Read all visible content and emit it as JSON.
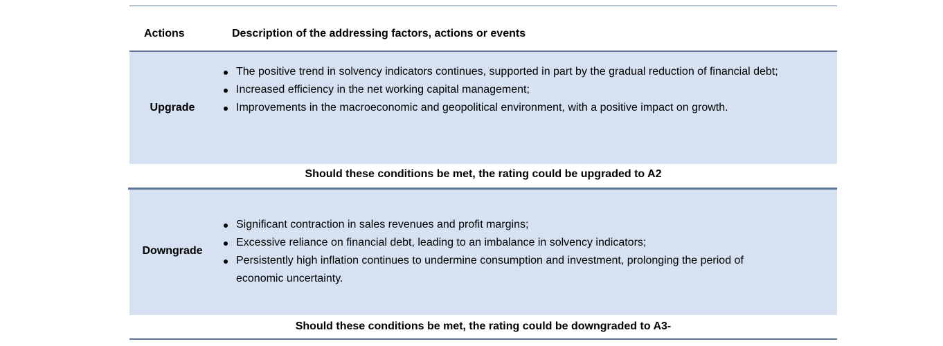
{
  "table": {
    "header": {
      "actions": "Actions",
      "description": "Description of the addressing factors, actions or events"
    },
    "rows": [
      {
        "label": "Upgrade",
        "items": [
          "The positive trend in solvency indicators continues, supported in part by the gradual reduction of financial debt;",
          "Increased efficiency in the net working capital management;",
          "Improvements in the macroeconomic and geopolitical environment, with a positive impact on growth."
        ],
        "condition": "Should these conditions be met, the rating could be upgraded to A2"
      },
      {
        "label": "Downgrade",
        "items": [
          "Significant contraction in sales revenues and profit margins;",
          "Excessive reliance on financial debt, leading to an imbalance in solvency indicators;",
          "Persistently high inflation continues to undermine consumption and investment, prolonging the period of economic uncertainty."
        ],
        "condition": "Should these conditions be met, the rating could be downgraded to A3-"
      }
    ]
  },
  "colors": {
    "band": "#d6e1f1",
    "rule": "#5a7597"
  }
}
